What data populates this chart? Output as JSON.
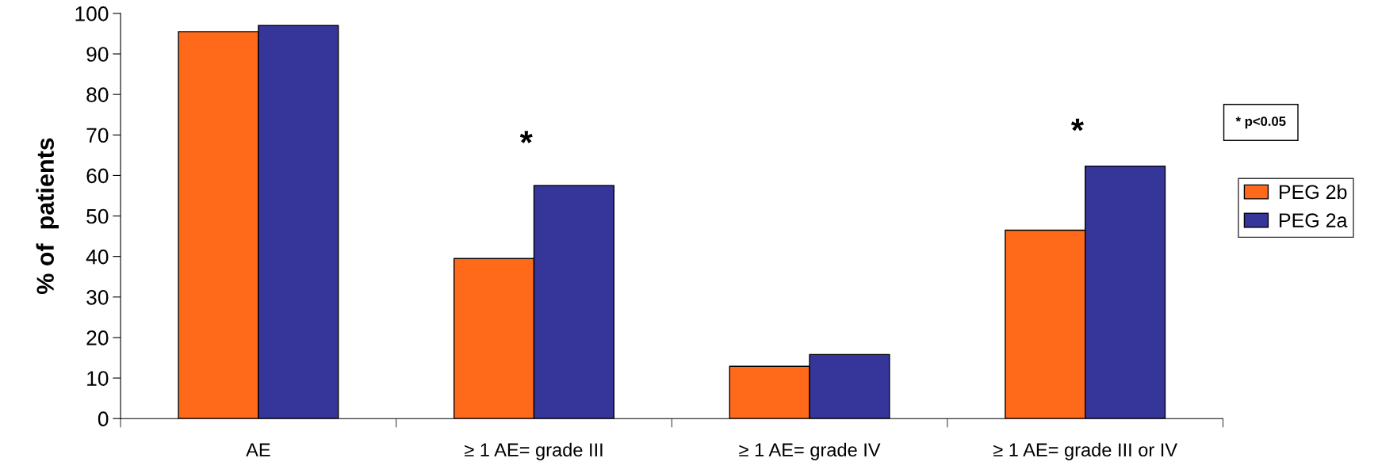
{
  "chart_data": {
    "type": "bar",
    "ylabel": "% of  patients",
    "categories": [
      "AE",
      "≥ 1 AE= grade III",
      "≥ 1 AE= grade IV",
      "≥ 1 AE= grade III or IV"
    ],
    "series": [
      {
        "name": "PEG 2b",
        "color": "#ff6a1a",
        "values": [
          95.5,
          39.5,
          12.9,
          46.5
        ]
      },
      {
        "name": "PEG 2a",
        "color": "#36369a",
        "values": [
          97.0,
          57.5,
          15.8,
          62.3
        ]
      }
    ],
    "ylim": [
      0,
      100
    ],
    "yticks": [
      0,
      10,
      20,
      30,
      40,
      50,
      60,
      70,
      80,
      90,
      100
    ],
    "annotations": [
      "*",
      "*",
      "* p<0.05"
    ],
    "legend": "right",
    "grid": false
  }
}
